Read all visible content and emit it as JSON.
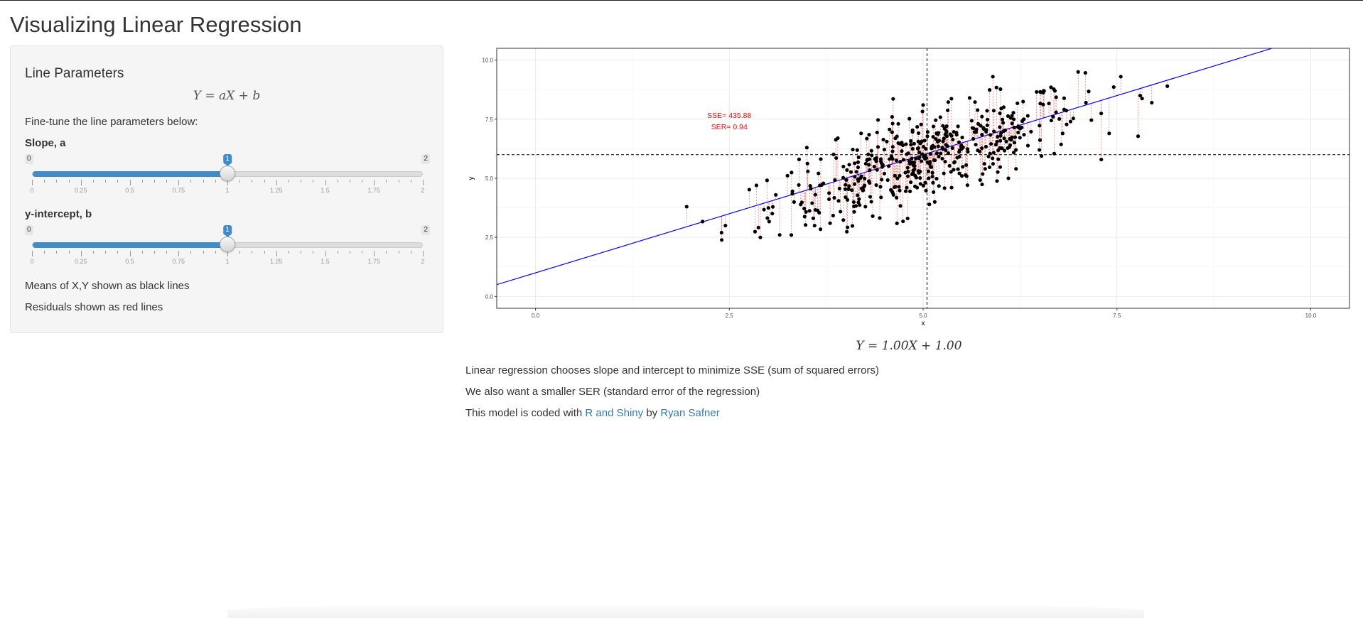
{
  "page": {
    "title": "Visualizing Linear Regression"
  },
  "sidebar": {
    "panel_title": "Line Parameters",
    "formula": "Y = aX + b",
    "intro": "Fine-tune the line parameters below:",
    "sliders": [
      {
        "label": "Slope, a",
        "min": 0,
        "max": 2,
        "value": 1,
        "min_label": "0",
        "max_label": "2",
        "value_label": "1",
        "ticks": [
          "0",
          "0.25",
          "0.5",
          "0.75",
          "1",
          "1.25",
          "1.5",
          "1.75",
          "2"
        ]
      },
      {
        "label": "y-intercept, b",
        "min": 0,
        "max": 2,
        "value": 1,
        "min_label": "0",
        "max_label": "2",
        "value_label": "1",
        "ticks": [
          "0",
          "0.25",
          "0.5",
          "0.75",
          "1",
          "1.25",
          "1.5",
          "1.75",
          "2"
        ]
      }
    ],
    "note_means": "Means of X,Y shown as black lines",
    "note_residuals": "Residuals shown as red lines"
  },
  "chart_data": {
    "type": "scatter",
    "xlabel": "x",
    "ylabel": "y",
    "xlim": [
      -0.5,
      10.5
    ],
    "ylim": [
      -0.5,
      10.5
    ],
    "xticks": [
      "0.0",
      "2.5",
      "5.0",
      "7.5",
      "10.0"
    ],
    "yticks": [
      "0.0",
      "2.5",
      "5.0",
      "7.5",
      "10.0"
    ],
    "grid": true,
    "fitted_line": {
      "slope": 1.0,
      "intercept": 1.0,
      "color": "#0000ff"
    },
    "mean_x": 5.05,
    "mean_y": 6.0,
    "annotation": {
      "sse": "SSE= 435.88",
      "ser": "SER= 0.94",
      "color": "#ff0000"
    },
    "n_points": 500,
    "points_sample": [
      [
        1.95,
        3.8
      ],
      [
        2.4,
        2.7
      ],
      [
        2.45,
        3.0
      ],
      [
        2.85,
        4.7
      ],
      [
        2.9,
        2.5
      ],
      [
        3.1,
        4.3
      ],
      [
        3.3,
        2.6
      ],
      [
        3.4,
        5.8
      ],
      [
        3.5,
        6.3
      ],
      [
        3.6,
        3.0
      ],
      [
        3.8,
        3.1
      ],
      [
        3.9,
        6.7
      ],
      [
        4.0,
        4.2
      ],
      [
        4.2,
        6.9
      ],
      [
        4.35,
        3.4
      ],
      [
        4.5,
        5.2
      ],
      [
        4.6,
        7.6
      ],
      [
        4.8,
        3.3
      ],
      [
        4.95,
        6.1
      ],
      [
        5.0,
        8.1
      ],
      [
        5.15,
        4.0
      ],
      [
        5.3,
        7.0
      ],
      [
        5.5,
        5.1
      ],
      [
        5.6,
        8.4
      ],
      [
        5.8,
        5.4
      ],
      [
        5.9,
        9.3
      ],
      [
        6.0,
        6.8
      ],
      [
        6.1,
        5.0
      ],
      [
        6.3,
        7.5
      ],
      [
        6.5,
        6.2
      ],
      [
        6.7,
        8.7
      ],
      [
        6.8,
        6.9
      ],
      [
        7.0,
        9.5
      ],
      [
        7.1,
        8.2
      ],
      [
        7.4,
        6.9
      ],
      [
        7.55,
        9.3
      ],
      [
        7.8,
        8.5
      ],
      [
        7.95,
        8.2
      ],
      [
        8.15,
        8.9
      ]
    ]
  },
  "main": {
    "result_formula": "Y = 1.00X + 1.00",
    "line1": "Linear regression chooses slope and intercept to minimize SSE (sum of squared errors)",
    "line2": "We also want a smaller SER (standard error of the regression)",
    "line3_prefix": "This model is coded with",
    "link1": "R and Shiny",
    "line3_mid": "by",
    "link2": "Ryan Safner"
  },
  "colors": {
    "accent": "#428bca",
    "link": "#337ab7",
    "fit_line": "#0000ff",
    "residual": "#ff0000"
  }
}
